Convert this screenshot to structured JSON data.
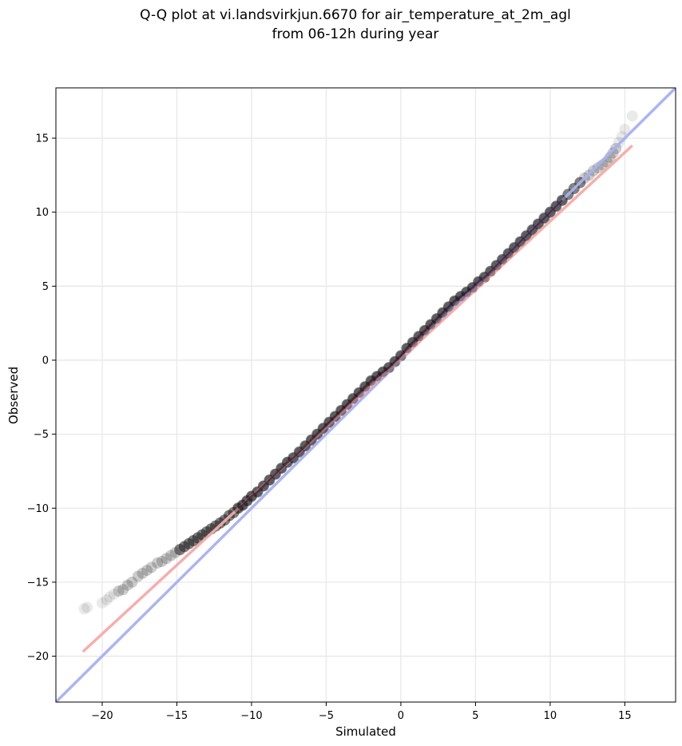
{
  "chart_data": {
    "type": "scatter",
    "title": "Q-Q plot at vi.landsvirkjun.6670 for air_temperature_at_2m_agl",
    "subtitle": "from 06-12h during year",
    "xlabel": "Simulated",
    "ylabel": "Observed",
    "xlim": [
      -23.1,
      18.4
    ],
    "ylim": [
      -23.1,
      18.4
    ],
    "xticks": [
      -20,
      -15,
      -10,
      -5,
      0,
      5,
      10,
      15
    ],
    "yticks": [
      -20,
      -15,
      -10,
      -5,
      0,
      5,
      10,
      15
    ],
    "xtick_labels": [
      "−20",
      "−15",
      "−10",
      "−5",
      "0",
      "5",
      "10",
      "15"
    ],
    "ytick_labels": [
      "−20",
      "−15",
      "−10",
      "−5",
      "0",
      "5",
      "10",
      "15"
    ],
    "grid": true,
    "legend": false,
    "colors": {
      "points": "#1a1a1a",
      "identity_line": "#aab0f0",
      "fit_line": "#f5aaaa",
      "dense_overlay_blue": "#1a237e",
      "dense_overlay_red": "#8b0000",
      "grid": "#e8e8e8"
    },
    "series": [
      {
        "kind": "quantiles",
        "points": [
          [
            -21.2,
            -16.8
          ],
          [
            -21.0,
            -16.7
          ],
          [
            -20.0,
            -16.4
          ],
          [
            -19.7,
            -16.2
          ],
          [
            -19.5,
            -16.0
          ],
          [
            -19.2,
            -15.8
          ],
          [
            -18.9,
            -15.6
          ],
          [
            -18.6,
            -15.5
          ],
          [
            -18.3,
            -15.2
          ],
          [
            -18.0,
            -15.0
          ],
          [
            -17.6,
            -14.6
          ],
          [
            -17.3,
            -14.4
          ],
          [
            -17.0,
            -14.2
          ],
          [
            -16.7,
            -14.0
          ],
          [
            -16.3,
            -13.7
          ],
          [
            -16.0,
            -13.6
          ],
          [
            -15.7,
            -13.4
          ],
          [
            -15.4,
            -13.2
          ],
          [
            -15.1,
            -13.0
          ],
          [
            -14.8,
            -12.8
          ],
          [
            -14.5,
            -12.6
          ],
          [
            -14.2,
            -12.4
          ],
          [
            -13.9,
            -12.2
          ],
          [
            -13.6,
            -12.0
          ],
          [
            -13.3,
            -11.8
          ],
          [
            -13.0,
            -11.6
          ],
          [
            -12.7,
            -11.4
          ],
          [
            -12.4,
            -11.2
          ],
          [
            -12.1,
            -11.0
          ],
          [
            -11.8,
            -10.8
          ],
          [
            -11.5,
            -10.5
          ],
          [
            -11.2,
            -10.3
          ],
          [
            -10.9,
            -10.0
          ],
          [
            -10.6,
            -9.8
          ],
          [
            -10.3,
            -9.5
          ],
          [
            -10.0,
            -9.2
          ],
          [
            -9.6,
            -8.9
          ],
          [
            -9.2,
            -8.5
          ],
          [
            -8.8,
            -8.1
          ],
          [
            -8.4,
            -7.7
          ],
          [
            -8.0,
            -7.3
          ],
          [
            -7.6,
            -6.9
          ],
          [
            -7.2,
            -6.6
          ],
          [
            -6.8,
            -6.2
          ],
          [
            -6.4,
            -5.8
          ],
          [
            -6.0,
            -5.4
          ],
          [
            -5.6,
            -5.0
          ],
          [
            -5.2,
            -4.6
          ],
          [
            -4.8,
            -4.2
          ],
          [
            -4.4,
            -3.8
          ],
          [
            -4.0,
            -3.4
          ],
          [
            -3.6,
            -3.0
          ],
          [
            -3.2,
            -2.6
          ],
          [
            -2.8,
            -2.2
          ],
          [
            -2.4,
            -1.8
          ],
          [
            -2.0,
            -1.4
          ],
          [
            -1.6,
            -1.1
          ],
          [
            -1.2,
            -0.8
          ],
          [
            -0.8,
            -0.5
          ],
          [
            -0.4,
            -0.1
          ],
          [
            0.0,
            0.3
          ],
          [
            0.4,
            0.8
          ],
          [
            0.8,
            1.2
          ],
          [
            1.2,
            1.6
          ],
          [
            1.6,
            2.0
          ],
          [
            2.0,
            2.4
          ],
          [
            2.4,
            2.8
          ],
          [
            2.8,
            3.2
          ],
          [
            3.2,
            3.6
          ],
          [
            3.6,
            4.0
          ],
          [
            4.0,
            4.3
          ],
          [
            4.4,
            4.6
          ],
          [
            4.8,
            4.9
          ],
          [
            5.2,
            5.3
          ],
          [
            5.6,
            5.6
          ],
          [
            6.0,
            6.0
          ],
          [
            6.4,
            6.4
          ],
          [
            6.8,
            6.8
          ],
          [
            7.2,
            7.2
          ],
          [
            7.6,
            7.6
          ],
          [
            8.0,
            8.0
          ],
          [
            8.4,
            8.4
          ],
          [
            8.8,
            8.8
          ],
          [
            9.2,
            9.2
          ],
          [
            9.6,
            9.6
          ],
          [
            10.0,
            10.0
          ],
          [
            10.4,
            10.4
          ],
          [
            10.8,
            10.8
          ],
          [
            11.2,
            11.2
          ],
          [
            11.6,
            11.6
          ],
          [
            12.0,
            12.0
          ],
          [
            12.3,
            12.3
          ],
          [
            12.6,
            12.5
          ],
          [
            12.9,
            12.8
          ],
          [
            13.2,
            13.0
          ],
          [
            13.5,
            13.2
          ],
          [
            13.8,
            13.4
          ],
          [
            14.0,
            13.7
          ],
          [
            14.2,
            14.0
          ],
          [
            14.4,
            14.3
          ],
          [
            14.6,
            14.7
          ],
          [
            14.8,
            15.1
          ],
          [
            15.0,
            15.6
          ],
          [
            15.5,
            16.5
          ]
        ]
      },
      {
        "kind": "identity_line",
        "from": [
          -23.1,
          -23.1
        ],
        "to": [
          18.4,
          18.4
        ]
      },
      {
        "kind": "fit_line",
        "from": [
          -21.3,
          -19.7
        ],
        "to": [
          15.5,
          14.5
        ]
      }
    ]
  }
}
